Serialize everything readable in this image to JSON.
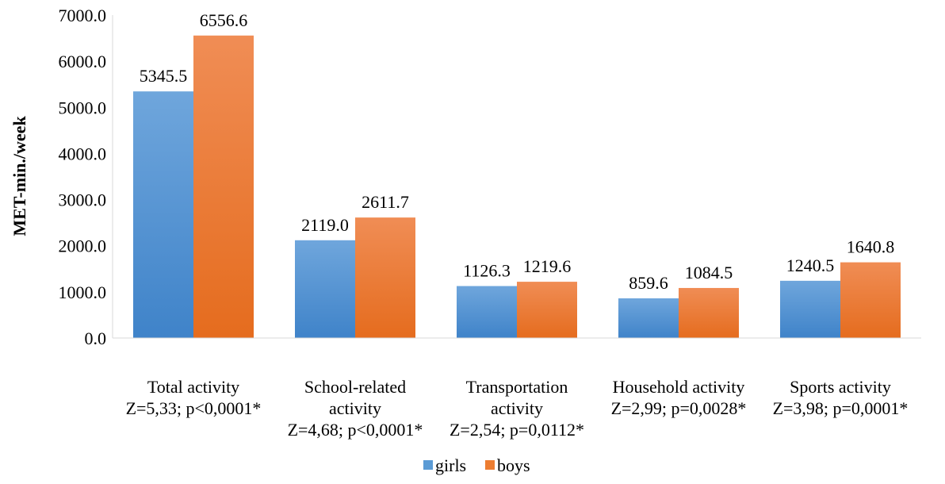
{
  "chart_data": {
    "type": "bar",
    "ylabel": "MET-min./week",
    "ylim": [
      0,
      7000
    ],
    "yticks": [
      "0.0",
      "1000.0",
      "2000.0",
      "3000.0",
      "4000.0",
      "5000.0",
      "6000.0",
      "7000.0"
    ],
    "grid": false,
    "legend_position": "bottom",
    "categories": [
      [
        "Total activity",
        "Z=5,33; p<0,0001*"
      ],
      [
        "School-related",
        "activity",
        "Z=4,68; p<0,0001*"
      ],
      [
        "Transportation",
        "activity",
        "Z=2,54; p=0,0112*"
      ],
      [
        "Household activity",
        "Z=2,99; p=0,0028*"
      ],
      [
        "Sports activity",
        "Z=3,98; p=0,0001*"
      ]
    ],
    "series": [
      {
        "name": "girls",
        "values": [
          5345.5,
          2119.0,
          1126.3,
          859.6,
          1240.5
        ],
        "labels": [
          "5345.5",
          "2119.0",
          "1126.3",
          "859.6",
          "1240.5"
        ],
        "color": "#5B9BD5"
      },
      {
        "name": "boys",
        "values": [
          6556.6,
          2611.7,
          1219.6,
          1084.5,
          1640.8
        ],
        "labels": [
          "6556.6",
          "2611.7",
          "1219.6",
          "1084.5",
          "1640.8"
        ],
        "color": "#ED7D31"
      }
    ]
  }
}
